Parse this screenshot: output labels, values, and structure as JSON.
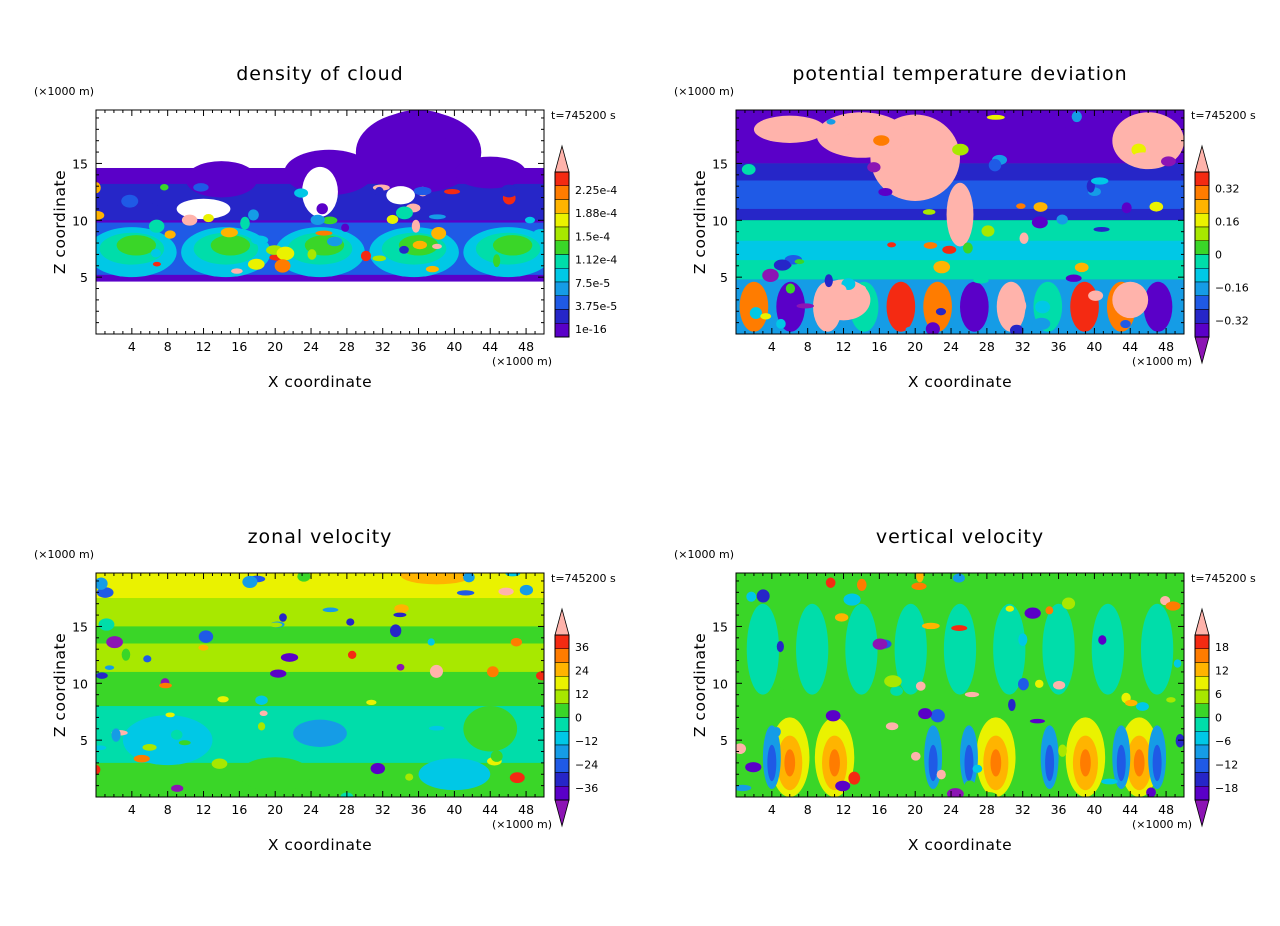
{
  "chart_data": [
    {
      "type": "heatmap",
      "title": "density of cloud",
      "xlabel": "X coordinate",
      "ylabel": "Z coordinate",
      "x_unit": "(×1000 m)",
      "y_unit": "(×1000 m)",
      "time_label": "t=745200 s",
      "xlim": [
        0,
        50
      ],
      "ylim": [
        0,
        19.7
      ],
      "x_ticks": [
        4,
        8,
        12,
        16,
        20,
        24,
        28,
        32,
        36,
        40,
        44,
        48
      ],
      "y_ticks": [
        5,
        10,
        15
      ],
      "colorbar": {
        "levels": [
          "2.25e-4",
          "1.88e-4",
          "1.5e-4",
          "1.12e-4",
          "7.5e-5",
          "3.75e-5",
          "1e-16"
        ],
        "colors": [
          "#ffb3ab",
          "#f42a12",
          "#ff7c00",
          "#ffb400",
          "#eaf200",
          "#a8e800",
          "#3ad628",
          "#00ddaa",
          "#00c8e6",
          "#159ce6",
          "#1f5ae6",
          "#2626c8",
          "#5a00c8"
        ],
        "extend": "max"
      },
      "background": "#ffffff"
    },
    {
      "type": "heatmap",
      "title": "potential temperature deviation",
      "xlabel": "X coordinate",
      "ylabel": "Z coordinate",
      "x_unit": "(×1000 m)",
      "y_unit": "(×1000 m)",
      "time_label": "t=745200 s",
      "xlim": [
        0,
        50
      ],
      "ylim": [
        0,
        19.7
      ],
      "x_ticks": [
        4,
        8,
        12,
        16,
        20,
        24,
        28,
        32,
        36,
        40,
        44,
        48
      ],
      "y_ticks": [
        5,
        10,
        15
      ],
      "colorbar": {
        "levels": [
          "0.32",
          "0.16",
          "0",
          "−0.16",
          "−0.32"
        ],
        "colors": [
          "#ffb3ab",
          "#f42a12",
          "#ff7c00",
          "#ffb400",
          "#eaf200",
          "#a8e800",
          "#3ad628",
          "#00ddaa",
          "#00c8e6",
          "#159ce6",
          "#1f5ae6",
          "#2626c8",
          "#5a00c8",
          "#8c14b4"
        ],
        "extend": "both"
      },
      "background": "#00dd66"
    },
    {
      "type": "heatmap",
      "title": "zonal velocity",
      "xlabel": "X coordinate",
      "ylabel": "Z coordinate",
      "x_unit": "(×1000 m)",
      "y_unit": "(×1000 m)",
      "time_label": "t=745200 s",
      "xlim": [
        0,
        50
      ],
      "ylim": [
        0,
        19.7
      ],
      "x_ticks": [
        4,
        8,
        12,
        16,
        20,
        24,
        28,
        32,
        36,
        40,
        44,
        48
      ],
      "y_ticks": [
        5,
        10,
        15
      ],
      "colorbar": {
        "levels": [
          "36",
          "24",
          "12",
          "0",
          "−12",
          "−24",
          "−36"
        ],
        "colors": [
          "#ffb3ab",
          "#f42a12",
          "#ff7c00",
          "#ffb400",
          "#eaf200",
          "#a8e800",
          "#3ad628",
          "#00ddaa",
          "#00c8e6",
          "#159ce6",
          "#1f5ae6",
          "#2626c8",
          "#5a00c8",
          "#8c14b4"
        ],
        "extend": "both"
      },
      "background": "#3ad628"
    },
    {
      "type": "heatmap",
      "title": "vertical velocity",
      "xlabel": "X coordinate",
      "ylabel": "Z coordinate",
      "x_unit": "(×1000 m)",
      "y_unit": "(×1000 m)",
      "time_label": "t=745200 s",
      "xlim": [
        0,
        50
      ],
      "ylim": [
        0,
        19.7
      ],
      "x_ticks": [
        4,
        8,
        12,
        16,
        20,
        24,
        28,
        32,
        36,
        40,
        44,
        48
      ],
      "y_ticks": [
        5,
        10,
        15
      ],
      "colorbar": {
        "levels": [
          "18",
          "12",
          "6",
          "0",
          "−6",
          "−12",
          "−18"
        ],
        "colors": [
          "#ffb3ab",
          "#f42a12",
          "#ff7c00",
          "#ffb400",
          "#eaf200",
          "#a8e800",
          "#3ad628",
          "#00ddaa",
          "#00c8e6",
          "#159ce6",
          "#1f5ae6",
          "#2626c8",
          "#5a00c8",
          "#8c14b4"
        ],
        "extend": "both"
      },
      "background": "#10e060"
    }
  ]
}
